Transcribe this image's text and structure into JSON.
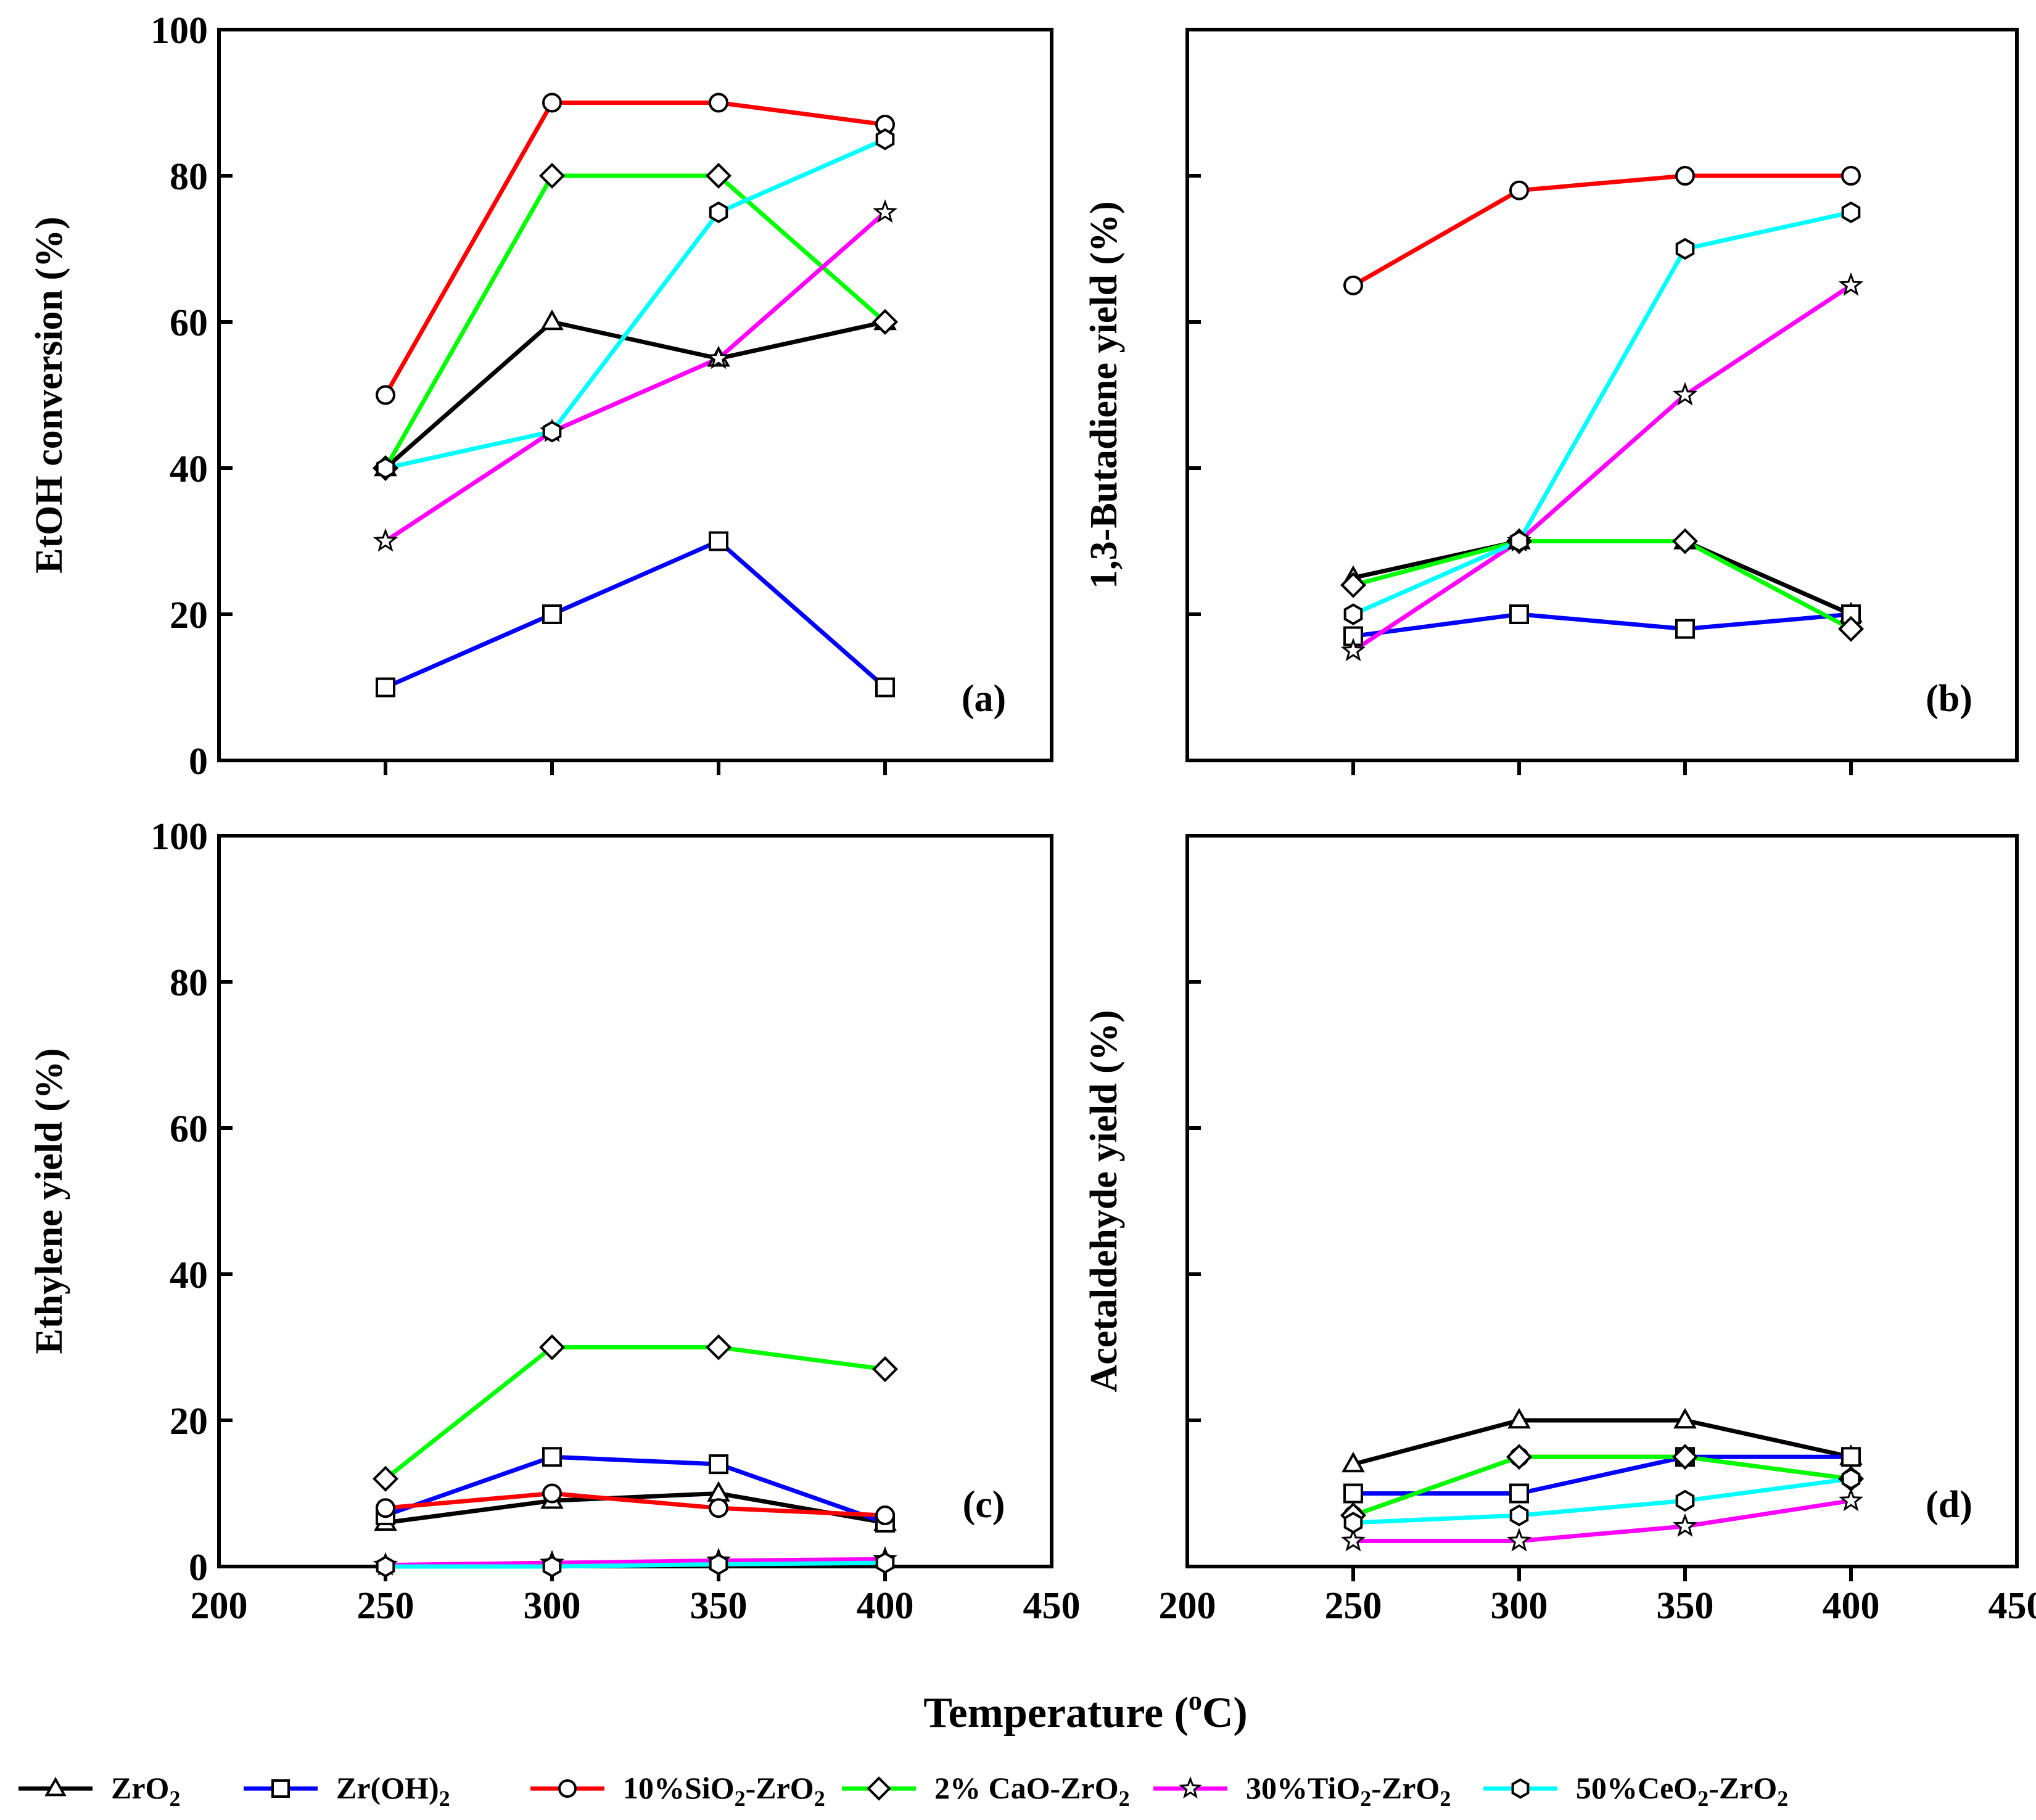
{
  "figure": {
    "xlabel": "Temperature (",
    "xlabel_sup": "o",
    "xlabel_end": "C)"
  },
  "legend": [
    {
      "label": "ZrO",
      "sub": "2",
      "tail": "",
      "color": "#000000",
      "marker": "triangle"
    },
    {
      "label": "Zr(OH)",
      "sub": "2",
      "tail": "",
      "color": "#0000ff",
      "marker": "square"
    },
    {
      "label": "10%SiO",
      "sub": "2",
      "tail": "-ZrO",
      "sub2": "2",
      "color": "#ff0000",
      "marker": "circle"
    },
    {
      "label": "2% CaO-ZrO",
      "sub": "2",
      "tail": "",
      "color": "#00ff00",
      "marker": "diamond"
    },
    {
      "label": "30%TiO",
      "sub": "2",
      "tail": "-ZrO",
      "sub2": "2",
      "color": "#ff00ff",
      "marker": "star"
    },
    {
      "label": "50%CeO",
      "sub": "2",
      "tail": "-ZrO",
      "sub2": "2",
      "color": "#00ffff",
      "marker": "hexagon"
    }
  ],
  "chart_data": [
    {
      "type": "line",
      "panel": "(a)",
      "ylabel": "EtOH conversion (%)",
      "xlim": [
        200,
        450
      ],
      "ylim": [
        0,
        100
      ],
      "xticks": [
        250,
        300,
        350,
        400
      ],
      "yticks": [
        0,
        20,
        40,
        60,
        80,
        100
      ],
      "show_xtick_labels": false,
      "show_ytick_labels": true,
      "x": [
        250,
        300,
        350,
        400
      ],
      "series": [
        {
          "name": "ZrO2",
          "values": [
            40,
            60,
            55,
            60
          ]
        },
        {
          "name": "Zr(OH)2",
          "values": [
            10,
            20,
            30,
            10
          ]
        },
        {
          "name": "10%SiO2-ZrO2",
          "values": [
            50,
            90,
            90,
            87
          ]
        },
        {
          "name": "2% CaO-ZrO2",
          "values": [
            40,
            80,
            80,
            60
          ]
        },
        {
          "name": "30%TiO2-ZrO2",
          "values": [
            30,
            45,
            55,
            75
          ]
        },
        {
          "name": "50%CeO2-ZrO2",
          "values": [
            40,
            45,
            75,
            85
          ]
        }
      ]
    },
    {
      "type": "line",
      "panel": "(b)",
      "ylabel": "1,3-Butadiene yield (%)",
      "xlim": [
        200,
        450
      ],
      "ylim": [
        0,
        100
      ],
      "xticks": [
        250,
        300,
        350,
        400
      ],
      "yticks": [
        0,
        20,
        40,
        60,
        80,
        100
      ],
      "show_xtick_labels": false,
      "show_ytick_labels": false,
      "x": [
        250,
        300,
        350,
        400
      ],
      "series": [
        {
          "name": "ZrO2",
          "values": [
            25,
            30,
            30,
            20
          ]
        },
        {
          "name": "Zr(OH)2",
          "values": [
            17,
            20,
            18,
            20
          ]
        },
        {
          "name": "10%SiO2-ZrO2",
          "values": [
            65,
            78,
            80,
            80
          ]
        },
        {
          "name": "2% CaO-ZrO2",
          "values": [
            24,
            30,
            30,
            18
          ]
        },
        {
          "name": "30%TiO2-ZrO2",
          "values": [
            15,
            30,
            50,
            65
          ]
        },
        {
          "name": "50%CeO2-ZrO2",
          "values": [
            20,
            30,
            70,
            75
          ]
        }
      ]
    },
    {
      "type": "line",
      "panel": "(c)",
      "ylabel": "Ethylene yield (%)",
      "xlim": [
        200,
        450
      ],
      "ylim": [
        0,
        100
      ],
      "xticks": [
        200,
        250,
        300,
        350,
        400,
        450
      ],
      "yticks": [
        0,
        20,
        40,
        60,
        80,
        100
      ],
      "show_xtick_labels": true,
      "show_ytick_labels": true,
      "x": [
        250,
        300,
        350,
        400
      ],
      "series": [
        {
          "name": "ZrO2",
          "values": [
            6,
            9,
            10,
            6
          ]
        },
        {
          "name": "Zr(OH)2",
          "values": [
            7,
            15,
            14,
            6
          ]
        },
        {
          "name": "10%SiO2-ZrO2",
          "values": [
            8,
            10,
            8,
            7
          ]
        },
        {
          "name": "2% CaO-ZrO2",
          "values": [
            12,
            30,
            30,
            27
          ]
        },
        {
          "name": "30%TiO2-ZrO2",
          "values": [
            0.2,
            0.5,
            0.8,
            1
          ]
        },
        {
          "name": "50%CeO2-ZrO2",
          "values": [
            0,
            0,
            0.3,
            0.5
          ]
        }
      ]
    },
    {
      "type": "line",
      "panel": "(d)",
      "ylabel": "Acetaldehyde yield (%)",
      "xlim": [
        200,
        450
      ],
      "ylim": [
        0,
        100
      ],
      "xticks": [
        200,
        250,
        300,
        350,
        400,
        450
      ],
      "yticks": [
        0,
        20,
        40,
        60,
        80,
        100
      ],
      "show_xtick_labels": true,
      "show_ytick_labels": false,
      "x": [
        250,
        300,
        350,
        400
      ],
      "series": [
        {
          "name": "ZrO2",
          "values": [
            14,
            20,
            20,
            15
          ]
        },
        {
          "name": "Zr(OH)2",
          "values": [
            10,
            10,
            15,
            15
          ]
        },
        {
          "name": "10%SiO2-ZrO2",
          "values": [
            7,
            15,
            15,
            12
          ]
        },
        {
          "name": "2% CaO-ZrO2",
          "values": [
            7,
            15,
            15,
            12
          ]
        },
        {
          "name": "30%TiO2-ZrO2",
          "values": [
            3.5,
            3.5,
            5.5,
            9
          ]
        },
        {
          "name": "50%CeO2-ZrO2",
          "values": [
            6,
            7,
            9,
            12
          ]
        }
      ]
    }
  ]
}
